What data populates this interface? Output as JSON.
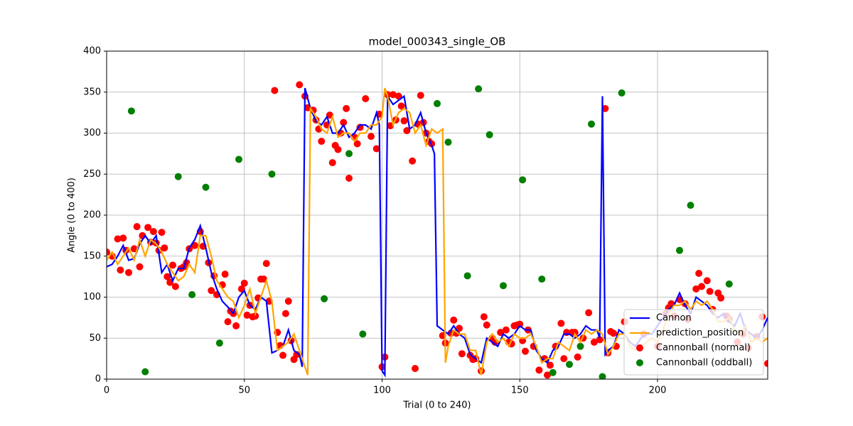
{
  "chart_data": {
    "type": "scatter",
    "title": "model_000343_single_OB",
    "x_label": "Trial (0 to 240)",
    "y_label": "Angle (0 to 400)",
    "xlim": [
      0,
      240
    ],
    "ylim": [
      0,
      400
    ],
    "xticks": [
      0,
      50,
      100,
      150,
      200
    ],
    "yticks": [
      0,
      50,
      100,
      150,
      200,
      250,
      300,
      350,
      400
    ],
    "grid": true,
    "legend": "lower right",
    "series": [
      {
        "name": "Cannon",
        "mode": "line",
        "color": "#0000ff",
        "x": [
          0,
          2,
          4,
          6,
          8,
          10,
          12,
          14,
          16,
          18,
          20,
          22,
          24,
          26,
          28,
          30,
          32,
          34,
          36,
          38,
          40,
          42,
          44,
          46,
          48,
          50,
          52,
          54,
          56,
          58,
          60,
          62,
          64,
          66,
          68,
          70,
          71,
          72,
          74,
          76,
          78,
          80,
          82,
          84,
          86,
          88,
          90,
          92,
          94,
          96,
          98,
          99,
          100,
          101,
          102,
          104,
          106,
          108,
          110,
          112,
          114,
          116,
          118,
          119,
          120,
          122,
          124,
          126,
          128,
          130,
          132,
          134,
          136,
          138,
          140,
          142,
          144,
          146,
          148,
          150,
          152,
          154,
          156,
          158,
          160,
          162,
          164,
          166,
          168,
          170,
          172,
          174,
          176,
          178,
          179,
          180,
          181,
          182,
          184,
          186,
          188,
          190,
          192,
          194,
          196,
          198,
          200,
          202,
          204,
          206,
          208,
          210,
          212,
          214,
          216,
          218,
          220,
          222,
          224,
          226,
          228,
          230,
          232,
          234,
          236,
          238,
          240
        ],
        "values": [
          137,
          140,
          150,
          163,
          145,
          147,
          165,
          175,
          165,
          175,
          130,
          140,
          120,
          135,
          135,
          160,
          170,
          187,
          160,
          130,
          110,
          95,
          88,
          80,
          100,
          108,
          90,
          85,
          100,
          95,
          32,
          35,
          40,
          60,
          35,
          30,
          15,
          355,
          330,
          315,
          310,
          320,
          300,
          300,
          310,
          295,
          300,
          310,
          310,
          305,
          325,
          310,
          10,
          5,
          345,
          335,
          340,
          345,
          305,
          310,
          325,
          300,
          285,
          275,
          65,
          60,
          55,
          65,
          55,
          50,
          30,
          25,
          20,
          50,
          45,
          40,
          55,
          50,
          55,
          65,
          60,
          60,
          35,
          25,
          20,
          35,
          40,
          55,
          55,
          50,
          55,
          65,
          60,
          60,
          50,
          345,
          30,
          35,
          40,
          60,
          55,
          45,
          40,
          50,
          55,
          55,
          65,
          75,
          85,
          90,
          105,
          90,
          80,
          100,
          95,
          90,
          80,
          75,
          80,
          70,
          65,
          80,
          60,
          55,
          50,
          60,
          75
        ]
      },
      {
        "name": "prediction_position",
        "mode": "line",
        "color": "#ffa500",
        "x": [
          0,
          2,
          4,
          6,
          8,
          10,
          12,
          14,
          16,
          18,
          20,
          22,
          24,
          26,
          28,
          30,
          32,
          34,
          36,
          38,
          40,
          42,
          44,
          46,
          48,
          50,
          52,
          54,
          56,
          58,
          60,
          62,
          64,
          66,
          68,
          70,
          72,
          73,
          74,
          76,
          78,
          80,
          82,
          84,
          86,
          88,
          90,
          92,
          94,
          96,
          98,
          100,
          101,
          102,
          104,
          106,
          108,
          110,
          112,
          114,
          116,
          118,
          120,
          122,
          123,
          124,
          126,
          128,
          130,
          132,
          134,
          136,
          138,
          140,
          142,
          144,
          146,
          148,
          150,
          152,
          154,
          156,
          158,
          160,
          162,
          164,
          166,
          168,
          170,
          172,
          174,
          176,
          178,
          180,
          182,
          184,
          186,
          188,
          190,
          192,
          194,
          196,
          198,
          200,
          202,
          204,
          206,
          208,
          210,
          212,
          214,
          216,
          218,
          220,
          222,
          224,
          226,
          228,
          230,
          232,
          234,
          236,
          238,
          240
        ],
        "values": [
          145,
          155,
          140,
          150,
          160,
          145,
          170,
          150,
          170,
          165,
          155,
          140,
          130,
          120,
          125,
          140,
          130,
          175,
          175,
          150,
          120,
          110,
          100,
          95,
          75,
          90,
          110,
          80,
          100,
          120,
          95,
          35,
          40,
          45,
          55,
          35,
          15,
          5,
          330,
          320,
          305,
          300,
          320,
          295,
          300,
          300,
          290,
          300,
          300,
          310,
          310,
          320,
          355,
          345,
          310,
          325,
          330,
          325,
          300,
          310,
          285,
          305,
          300,
          305,
          20,
          40,
          60,
          55,
          55,
          35,
          35,
          5,
          45,
          55,
          45,
          50,
          40,
          55,
          50,
          50,
          55,
          40,
          20,
          25,
          25,
          45,
          40,
          35,
          55,
          45,
          60,
          55,
          60,
          55,
          30,
          40,
          55,
          55,
          40,
          35,
          40,
          45,
          50,
          45,
          60,
          80,
          90,
          90,
          95,
          85,
          95,
          90,
          95,
          85,
          70,
          70,
          75,
          60,
          55,
          65,
          45,
          50,
          45,
          50
        ]
      },
      {
        "name": "Cannonball (normal)",
        "mode": "scatter",
        "color": "#ff0000",
        "x": [
          0,
          2,
          4,
          5,
          6,
          7,
          8,
          10,
          11,
          12,
          13,
          15,
          16,
          17,
          18,
          19,
          20,
          21,
          22,
          23,
          24,
          25,
          27,
          28,
          29,
          30,
          32,
          34,
          35,
          37,
          38,
          39,
          40,
          42,
          43,
          44,
          45,
          46,
          47,
          49,
          50,
          51,
          52,
          53,
          54,
          55,
          56,
          57,
          58,
          59,
          61,
          62,
          63,
          64,
          65,
          66,
          67,
          68,
          69,
          70,
          72,
          73,
          75,
          76,
          77,
          78,
          80,
          81,
          82,
          83,
          84,
          85,
          86,
          87,
          88,
          90,
          91,
          92,
          94,
          96,
          98,
          99,
          100,
          101,
          102,
          103,
          104,
          105,
          106,
          107,
          108,
          109,
          111,
          112,
          113,
          114,
          115,
          116,
          117,
          118,
          122,
          123,
          125,
          126,
          127,
          128,
          129,
          132,
          133,
          134,
          136,
          137,
          138,
          140,
          141,
          143,
          145,
          146,
          147,
          148,
          149,
          150,
          151,
          152,
          153,
          155,
          157,
          159,
          160,
          161,
          163,
          165,
          166,
          167,
          169,
          170,
          171,
          173,
          175,
          177,
          179,
          181,
          182,
          183,
          184,
          185,
          188,
          195,
          200,
          203,
          204,
          205,
          206,
          208,
          210,
          211,
          214,
          215,
          216,
          218,
          219,
          220,
          222,
          223,
          225,
          226,
          229,
          231,
          233,
          236,
          238,
          240
        ],
        "values": [
          155,
          150,
          171,
          133,
          172,
          157,
          130,
          159,
          186,
          137,
          175,
          185,
          167,
          180,
          166,
          157,
          179,
          160,
          125,
          118,
          139,
          113,
          135,
          137,
          142,
          159,
          163,
          180,
          162,
          142,
          108,
          126,
          103,
          115,
          128,
          70,
          83,
          80,
          65,
          110,
          117,
          78,
          90,
          76,
          77,
          99,
          122,
          122,
          141,
          95,
          352,
          57,
          41,
          29,
          80,
          95,
          47,
          24,
          30,
          359,
          345,
          331,
          328,
          316,
          305,
          290,
          310,
          322,
          264,
          285,
          280,
          300,
          313,
          330,
          245,
          295,
          287,
          307,
          342,
          296,
          281,
          323,
          15,
          27,
          347,
          309,
          347,
          316,
          345,
          333,
          315,
          303,
          266,
          13,
          311,
          346,
          313,
          300,
          290,
          287,
          53,
          44,
          56,
          72,
          56,
          62,
          31,
          29,
          24,
          25,
          10,
          76,
          66,
          50,
          45,
          57,
          60,
          45,
          43,
          65,
          66,
          67,
          47,
          34,
          60,
          40,
          11,
          25,
          5,
          17,
          40,
          68,
          25,
          57,
          57,
          57,
          27,
          50,
          81,
          45,
          48,
          330,
          32,
          58,
          56,
          40,
          70,
          55,
          40,
          80,
          87,
          92,
          77,
          97,
          92,
          73,
          110,
          129,
          113,
          120,
          107,
          85,
          105,
          99,
          77,
          73,
          45,
          55,
          38,
          52,
          76,
          19
        ]
      },
      {
        "name": "Cannonball (oddball)",
        "mode": "scatter",
        "color": "#008000",
        "x": [
          9,
          14,
          26,
          31,
          36,
          41,
          48,
          60,
          79,
          88,
          93,
          120,
          124,
          131,
          135,
          139,
          144,
          151,
          158,
          162,
          168,
          172,
          176,
          180,
          187,
          208,
          212,
          226
        ],
        "values": [
          327,
          9,
          247,
          103,
          234,
          44,
          268,
          250,
          98,
          275,
          55,
          336,
          289,
          126,
          354,
          298,
          114,
          243,
          122,
          8,
          18,
          40,
          311,
          3,
          349,
          157,
          212,
          116
        ]
      }
    ]
  }
}
